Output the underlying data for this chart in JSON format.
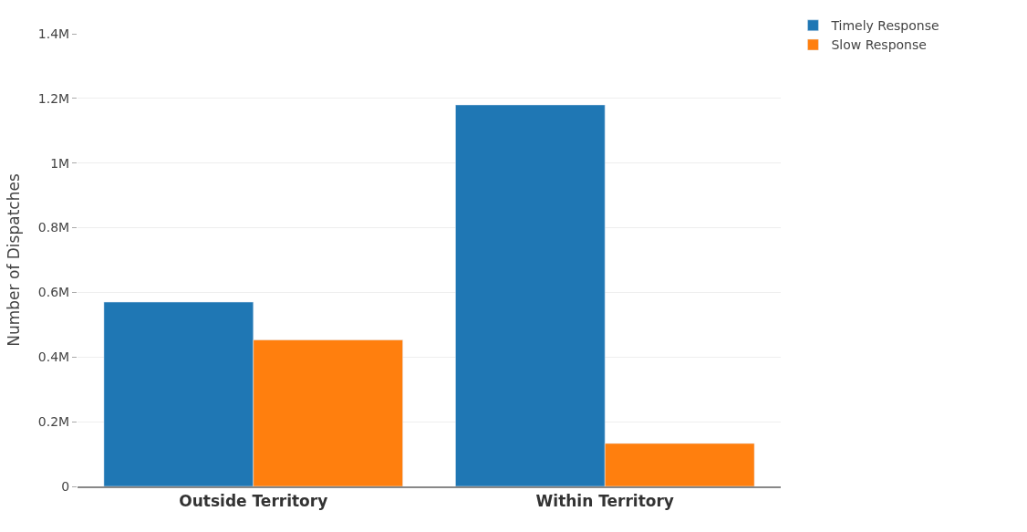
{
  "chart_data": {
    "type": "bar",
    "ylabel": "Number of Dispatches",
    "categories": [
      "Outside Territory",
      "Within Territory"
    ],
    "series": [
      {
        "name": "Timely Response",
        "color": "#1f77b4",
        "values": [
          570000,
          1180000
        ]
      },
      {
        "name": "Slow Response",
        "color": "#ff7f0e",
        "values": [
          453000,
          133000
        ]
      }
    ],
    "ylim": [
      0,
      1400000
    ],
    "yticks": [
      {
        "value": 0,
        "label": "0"
      },
      {
        "value": 200000,
        "label": "0.2M"
      },
      {
        "value": 400000,
        "label": "0.4M"
      },
      {
        "value": 600000,
        "label": "0.6M"
      },
      {
        "value": 800000,
        "label": "0.8M"
      },
      {
        "value": 1000000,
        "label": "1M"
      },
      {
        "value": 1200000,
        "label": "1.2M"
      },
      {
        "value": 1400000,
        "label": "1.4M"
      }
    ],
    "grid": "y",
    "legend": "top right"
  }
}
